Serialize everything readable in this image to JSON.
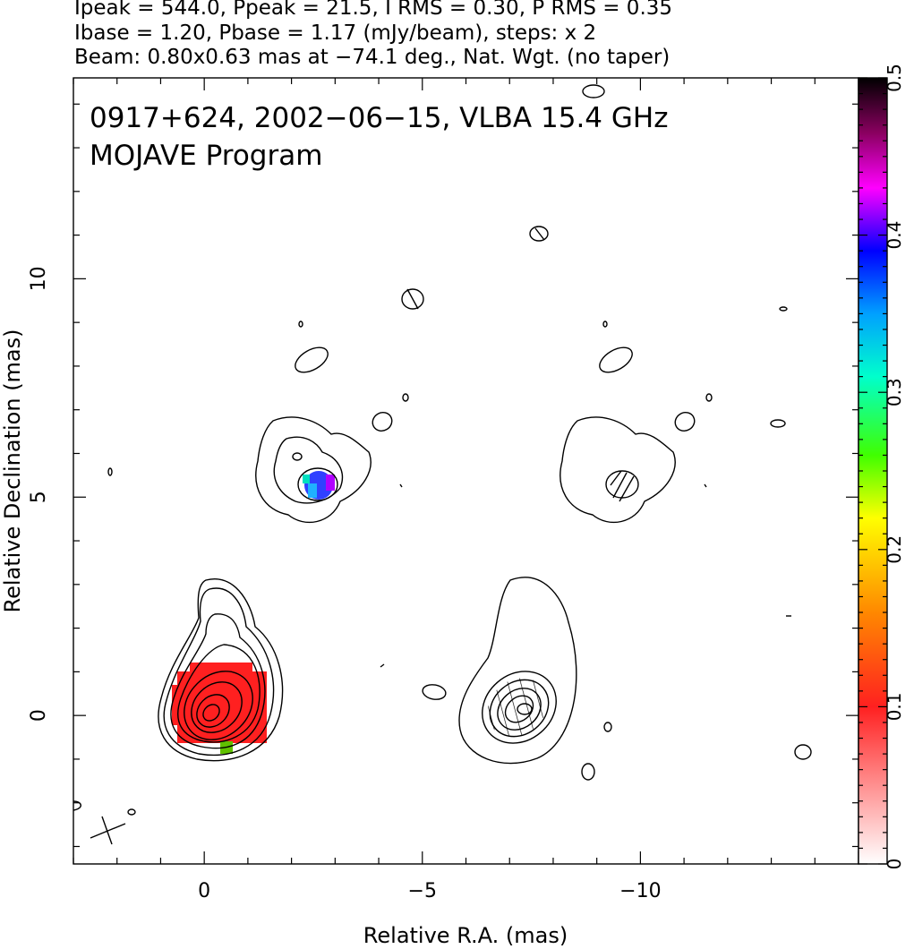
{
  "header": {
    "line1": "Ipeak = 544.0, Ppeak = 21.5, I RMS = 0.30, P RMS = 0.35",
    "line2": "Ibase = 1.20, Pbase = 1.17 (mJy/beam), steps: x 2",
    "line3": "Beam: 0.80x0.63 mas at −74.1 deg., Nat. Wgt. (no taper)"
  },
  "chart_data": {
    "type": "contour",
    "title": "0917+624, 2002−06−15, VLBA 15.4 GHz",
    "subtitle": "MOJAVE Program",
    "xlabel": "Relative R.A. (mas)",
    "ylabel": "Relative Declination (mas)",
    "xlim": [
      3.0,
      -15.0
    ],
    "ylim": [
      -3.4,
      14.6
    ],
    "xticks": [
      0,
      -5,
      -10
    ],
    "xtick_labels": [
      "0",
      "−5",
      "−10"
    ],
    "yticks": [
      0,
      5,
      10
    ],
    "ytick_labels": [
      "0",
      "5",
      "10"
    ],
    "colorbar": {
      "range": [
        0,
        0.5
      ],
      "ticks": [
        0,
        0.1,
        0.2,
        0.3,
        0.4,
        0.5
      ],
      "tick_labels": [
        "0",
        "0.1",
        "0.2",
        "0.3",
        "0.4",
        "0.5"
      ],
      "colors": [
        "#ffffff",
        "#ff2020",
        "#ff8800",
        "#ffff00",
        "#40ff00",
        "#00ffcc",
        "#00a0ff",
        "#0000ff",
        "#ff00ff",
        "#000000"
      ]
    },
    "panels": [
      {
        "name": "left",
        "components": [
          {
            "ra": -0.1,
            "dec": 0.1,
            "levels": 8,
            "fractional_pol": 0.09
          },
          {
            "ra": -2.3,
            "dec": 5.3,
            "levels": 3,
            "fractional_pol": 0.38
          }
        ]
      },
      {
        "name": "right",
        "offset_ra": -6.9,
        "components": [
          {
            "ra": -7.0,
            "dec": 0.1,
            "levels": 8
          },
          {
            "ra": -9.2,
            "dec": 5.3,
            "levels": 2
          }
        ]
      }
    ],
    "beam": {
      "major_mas": 0.8,
      "minor_mas": 0.63,
      "pa_deg": -74.1
    }
  }
}
